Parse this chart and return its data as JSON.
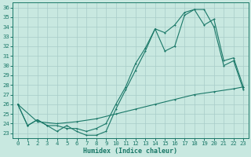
{
  "xlabel": "Humidex (Indice chaleur)",
  "bg_color": "#c8e8e0",
  "grid_color": "#a8ccc8",
  "line_color": "#1a7868",
  "xlim": [
    -0.5,
    23.5
  ],
  "ylim": [
    22.5,
    36.5
  ],
  "xticks": [
    0,
    1,
    2,
    3,
    4,
    5,
    6,
    7,
    8,
    9,
    10,
    11,
    12,
    13,
    14,
    15,
    16,
    17,
    18,
    19,
    20,
    21,
    22,
    23
  ],
  "yticks": [
    23,
    24,
    25,
    26,
    27,
    28,
    29,
    30,
    31,
    32,
    33,
    34,
    35,
    36
  ],
  "line1_x": [
    0,
    1,
    2,
    3,
    4,
    5,
    6,
    7,
    8,
    9,
    10,
    11,
    12,
    13,
    14,
    15,
    16,
    17,
    18,
    19,
    20,
    21,
    22,
    23
  ],
  "line1_y": [
    26.0,
    23.8,
    24.4,
    23.8,
    23.2,
    23.8,
    23.2,
    22.8,
    22.8,
    23.2,
    25.5,
    27.5,
    29.5,
    31.5,
    33.8,
    33.4,
    34.2,
    35.5,
    35.8,
    35.8,
    34.0,
    30.0,
    30.5,
    27.5
  ],
  "line2_x": [
    0,
    1,
    2,
    3,
    4,
    5,
    6,
    7,
    8,
    9,
    10,
    11,
    12,
    13,
    14,
    15,
    16,
    17,
    18,
    19,
    20,
    21,
    22,
    23
  ],
  "line2_y": [
    26.0,
    23.8,
    24.4,
    23.8,
    23.8,
    23.5,
    23.5,
    23.2,
    23.5,
    24.0,
    26.0,
    27.8,
    30.2,
    31.8,
    33.8,
    31.5,
    32.0,
    35.2,
    35.8,
    34.2,
    34.8,
    30.5,
    30.8,
    27.8
  ],
  "line3_x": [
    0,
    2,
    4,
    6,
    8,
    10,
    12,
    14,
    16,
    18,
    20,
    22,
    23
  ],
  "line3_y": [
    26.0,
    24.2,
    24.0,
    24.2,
    24.5,
    25.0,
    25.5,
    26.0,
    26.5,
    27.0,
    27.3,
    27.6,
    27.8
  ]
}
